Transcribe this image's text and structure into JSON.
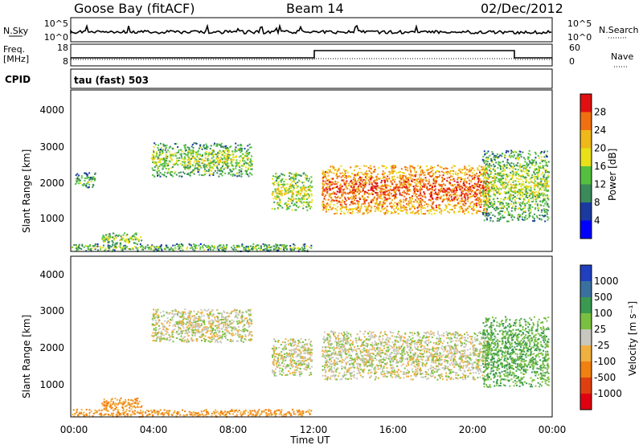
{
  "header": {
    "station": "Goose Bay (fitACF)",
    "beam": "Beam 14",
    "date": "02/Dec/2012"
  },
  "top_panels": {
    "nsky": {
      "label": "N.Sky",
      "left_ticks": [
        "10^5",
        "10^0"
      ],
      "right_ticks": [
        "10^5",
        "10^0"
      ],
      "right_label": "N.Search"
    },
    "freq": {
      "label_line1": "Freq.",
      "label_line2": "[MHz]",
      "left_ticks": [
        "18",
        "8"
      ],
      "right_ticks": [
        "60",
        "0"
      ],
      "right_label": "Nave",
      "cpid_label": "CPID",
      "cpid_value": "tau (fast) 503"
    }
  },
  "power_panel": {
    "ylabel": "Slant Range [km]",
    "yticks": [
      "4000",
      "3000",
      "2000",
      "1000"
    ],
    "colorbar_label": "Power [dB]",
    "colorbar_ticks": [
      "28",
      "24",
      "20",
      "16",
      "12",
      "8",
      "4"
    ],
    "colors": [
      "#0000ff",
      "#1a3aa0",
      "#3b8a5a",
      "#55c040",
      "#e8e018",
      "#f0b818",
      "#f07010",
      "#e01010"
    ]
  },
  "velocity_panel": {
    "ylabel": "Slant Range [km]",
    "yticks": [
      "4000",
      "3000",
      "2000",
      "1000"
    ],
    "colorbar_label": "Velocity [m s⁻¹]",
    "colorbar_ticks": [
      "1000",
      "500",
      "100",
      "25",
      "-25",
      "-100",
      "-500",
      "-1000"
    ],
    "colors": [
      "#2040c0",
      "#3a70a0",
      "#3a9a50",
      "#7ac040",
      "#c8c8c0",
      "#f0b040",
      "#f08010",
      "#e04010",
      "#e00010"
    ]
  },
  "xaxis": {
    "label": "Time UT",
    "ticks": [
      "00:00",
      "04:00",
      "08:00",
      "12:00",
      "16:00",
      "20:00",
      "00:00"
    ]
  },
  "chart_data": [
    {
      "type": "heatmap",
      "name": "Power",
      "xlabel": "Time UT",
      "ylabel": "Slant Range [km]",
      "xlim": [
        0,
        24
      ],
      "ylim": [
        180,
        4500
      ],
      "clim": [
        0,
        30
      ],
      "regions": [
        {
          "t": [
            0.0,
            12.0
          ],
          "r": [
            200,
            400
          ],
          "power": 8
        },
        {
          "t": [
            1.5,
            3.5
          ],
          "r": [
            400,
            700
          ],
          "power": 10
        },
        {
          "t": [
            0.2,
            1.2
          ],
          "r": [
            1900,
            2300
          ],
          "power": 7
        },
        {
          "t": [
            4.0,
            9.0
          ],
          "r": [
            2200,
            3100
          ],
          "power": 10
        },
        {
          "t": [
            10.0,
            12.0
          ],
          "r": [
            1300,
            2300
          ],
          "power": 12
        },
        {
          "t": [
            12.5,
            20.8
          ],
          "r": [
            1200,
            2500
          ],
          "power": 20
        },
        {
          "t": [
            20.5,
            23.8
          ],
          "r": [
            1000,
            2900
          ],
          "power": 10
        }
      ]
    },
    {
      "type": "heatmap",
      "name": "Velocity",
      "xlabel": "Time UT",
      "ylabel": "Slant Range [km]",
      "xlim": [
        0,
        24
      ],
      "ylim": [
        180,
        4500
      ],
      "clim": [
        -1000,
        1000
      ],
      "regions": [
        {
          "t": [
            0.0,
            12.0
          ],
          "r": [
            200,
            400
          ],
          "velocity": -100
        },
        {
          "t": [
            1.5,
            3.5
          ],
          "r": [
            400,
            700
          ],
          "velocity": -100
        },
        {
          "t": [
            4.0,
            9.0
          ],
          "r": [
            2200,
            3100
          ],
          "velocity": 0
        },
        {
          "t": [
            10.0,
            12.0
          ],
          "r": [
            1300,
            2300
          ],
          "velocity": 0
        },
        {
          "t": [
            12.5,
            20.8
          ],
          "r": [
            1200,
            2500
          ],
          "velocity": 0
        },
        {
          "t": [
            20.5,
            23.8
          ],
          "r": [
            1000,
            2900
          ],
          "velocity": 100
        }
      ]
    }
  ]
}
